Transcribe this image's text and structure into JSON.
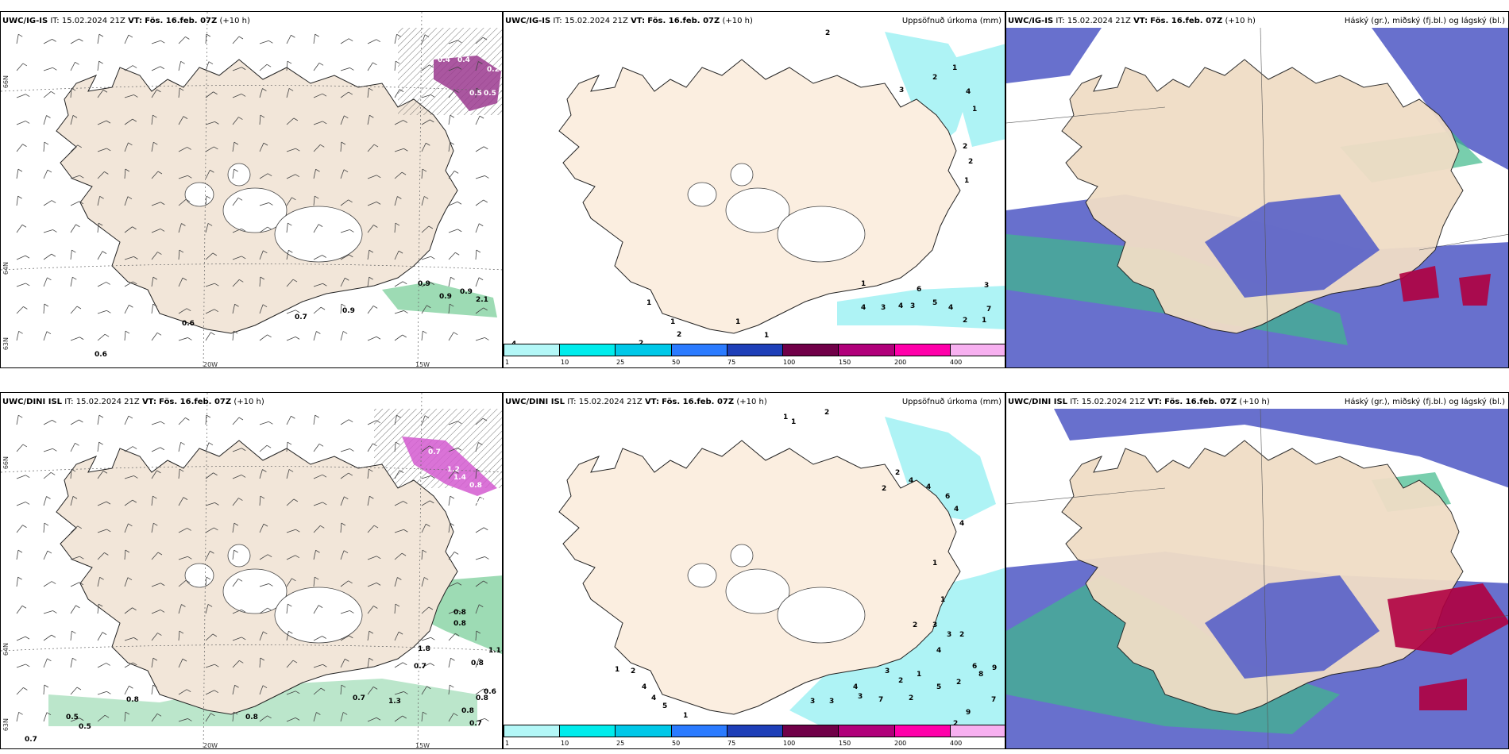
{
  "panels": [
    {
      "model_label": "UWC/IG-IS",
      "init_label": "IT:",
      "init": "15.02.2024 21Z",
      "valid_label": "VT:",
      "valid": "Fös. 16.feb. 07Z",
      "lead": "(+10 h)",
      "title": ""
    },
    {
      "model_label": "UWC/IG-IS",
      "init_label": "IT:",
      "init": "15.02.2024 21Z",
      "valid_label": "VT:",
      "valid": "Fös. 16.feb. 07Z",
      "lead": "(+10 h)",
      "title": "Uppsöfnuð úrkoma (mm)"
    },
    {
      "model_label": "UWC/IG-IS",
      "init_label": "IT:",
      "init": "15.02.2024 21Z",
      "valid_label": "VT:",
      "valid": "Fös. 16.feb. 07Z",
      "lead": "(+10 h)",
      "title": "Háský (gr.), miðský (fj.bl.) og lágský (bl.)"
    },
    {
      "model_label": "UWC/DINI ISL",
      "init_label": "IT:",
      "init": "15.02.2024 21Z",
      "valid_label": "VT:",
      "valid": "Fös. 16.feb. 07Z",
      "lead": "(+10 h)",
      "title": ""
    },
    {
      "model_label": "UWC/DINI ISL",
      "init_label": "IT:",
      "init": "15.02.2024 21Z",
      "valid_label": "VT:",
      "valid": "Fös. 16.feb. 07Z",
      "lead": "(+10 h)",
      "title": "Uppsöfnuð úrkoma (mm)"
    },
    {
      "model_label": "UWC/DINI ISL",
      "init_label": "IT:",
      "init": "15.02.2024 21Z",
      "valid_label": "VT:",
      "valid": "Fös. 16.feb. 07Z",
      "lead": "(+10 h)",
      "title": "Háský (gr.), miðský (fj.bl.) og lágský (bl.)"
    }
  ],
  "axes": {
    "lon_20w": "20W",
    "lon_15w": "15W",
    "lat_66n": "66N",
    "lat_64n": "64N",
    "lat_63n": "63N"
  },
  "precip_colorbar": {
    "labels": [
      "1",
      "10",
      "25",
      "50",
      "75",
      "100",
      "150",
      "200",
      "400"
    ],
    "colors": [
      "#b3f7f7",
      "#00ecec",
      "#00c8e8",
      "#2b7bff",
      "#1e3fb8",
      "#700048",
      "#b0007a",
      "#ff00aa",
      "#f7b0f0"
    ]
  },
  "colors": {
    "land": "#fbeee0",
    "land_wind": "#f2e6d9",
    "precip_light": "#aef3f5",
    "cloud_low": "#5860c8",
    "cloud_mid": "#3fb98a",
    "cloud_high": "#b00040"
  },
  "top_wind_numbers": [
    "0.4",
    "0.4",
    "0.2",
    "0.5",
    "0.5",
    "0.6",
    "0.6",
    "0.7",
    "0.9",
    "0.9",
    "0.9",
    "0.9",
    "2.1"
  ],
  "top_precip_numbers": [
    "2",
    "1",
    "2",
    "3",
    "4",
    "1",
    "2",
    "2",
    "1",
    "1",
    "6",
    "3",
    "4",
    "3",
    "4",
    "3",
    "5",
    "4",
    "7",
    "2",
    "1",
    "1",
    "1",
    "2",
    "1",
    "1",
    "2",
    "4"
  ],
  "bottom_wind_numbers": [
    "0.7",
    "1.2",
    "1.4",
    "0.8",
    "0.8",
    "0.8",
    "0.8",
    "1.1",
    "0.8",
    "1.8",
    "0.7",
    "0.8",
    "0.7",
    "0.8",
    "1.3",
    "0.7",
    "0.6",
    "0.8",
    "0.5",
    "0.5",
    "0.8",
    "0.7"
  ],
  "bottom_precip_numbers": [
    "1",
    "1",
    "2",
    "2",
    "2",
    "4",
    "4",
    "6",
    "4",
    "4",
    "1",
    "1",
    "2",
    "3",
    "3",
    "2",
    "4",
    "6",
    "8",
    "1",
    "2",
    "3",
    "2",
    "7",
    "9",
    "2",
    "5",
    "1",
    "2",
    "4",
    "4",
    "5",
    "1",
    "3",
    "3",
    "3",
    "4",
    "7",
    "2",
    "9"
  ]
}
